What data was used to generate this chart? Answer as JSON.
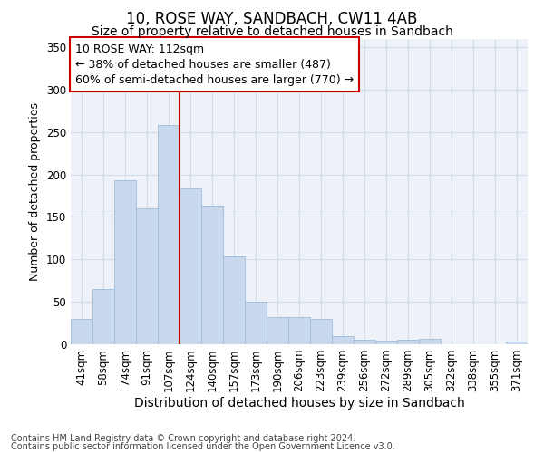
{
  "title": "10, ROSE WAY, SANDBACH, CW11 4AB",
  "subtitle": "Size of property relative to detached houses in Sandbach",
  "xlabel": "Distribution of detached houses by size in Sandbach",
  "ylabel": "Number of detached properties",
  "categories": [
    "41sqm",
    "58sqm",
    "74sqm",
    "91sqm",
    "107sqm",
    "124sqm",
    "140sqm",
    "157sqm",
    "173sqm",
    "190sqm",
    "206sqm",
    "223sqm",
    "239sqm",
    "256sqm",
    "272sqm",
    "289sqm",
    "305sqm",
    "322sqm",
    "338sqm",
    "355sqm",
    "371sqm"
  ],
  "values": [
    30,
    65,
    193,
    160,
    258,
    183,
    163,
    103,
    50,
    32,
    32,
    30,
    10,
    5,
    4,
    5,
    6,
    0,
    0,
    0,
    3
  ],
  "bar_color": "#c8d9ee",
  "bar_edge_color": "#a0bcd8",
  "grid_color": "#d0dcea",
  "background_color": "#eef2f8",
  "red_line_color": "#cc0000",
  "red_line_bin_index": 5,
  "annotation_box_text_line1": "10 ROSE WAY: 112sqm",
  "annotation_box_text_line2": "← 38% of detached houses are smaller (487)",
  "annotation_box_text_line3": "60% of semi-detached houses are larger (770) →",
  "annotation_box_edge_color": "#cc0000",
  "ylim": [
    0,
    360
  ],
  "yticks": [
    0,
    50,
    100,
    150,
    200,
    250,
    300,
    350
  ],
  "footer_line1": "Contains HM Land Registry data © Crown copyright and database right 2024.",
  "footer_line2": "Contains public sector information licensed under the Open Government Licence v3.0.",
  "title_fontsize": 12,
  "subtitle_fontsize": 10,
  "xlabel_fontsize": 10,
  "ylabel_fontsize": 9,
  "tick_fontsize": 8.5,
  "annotation_fontsize": 9,
  "footer_fontsize": 7
}
